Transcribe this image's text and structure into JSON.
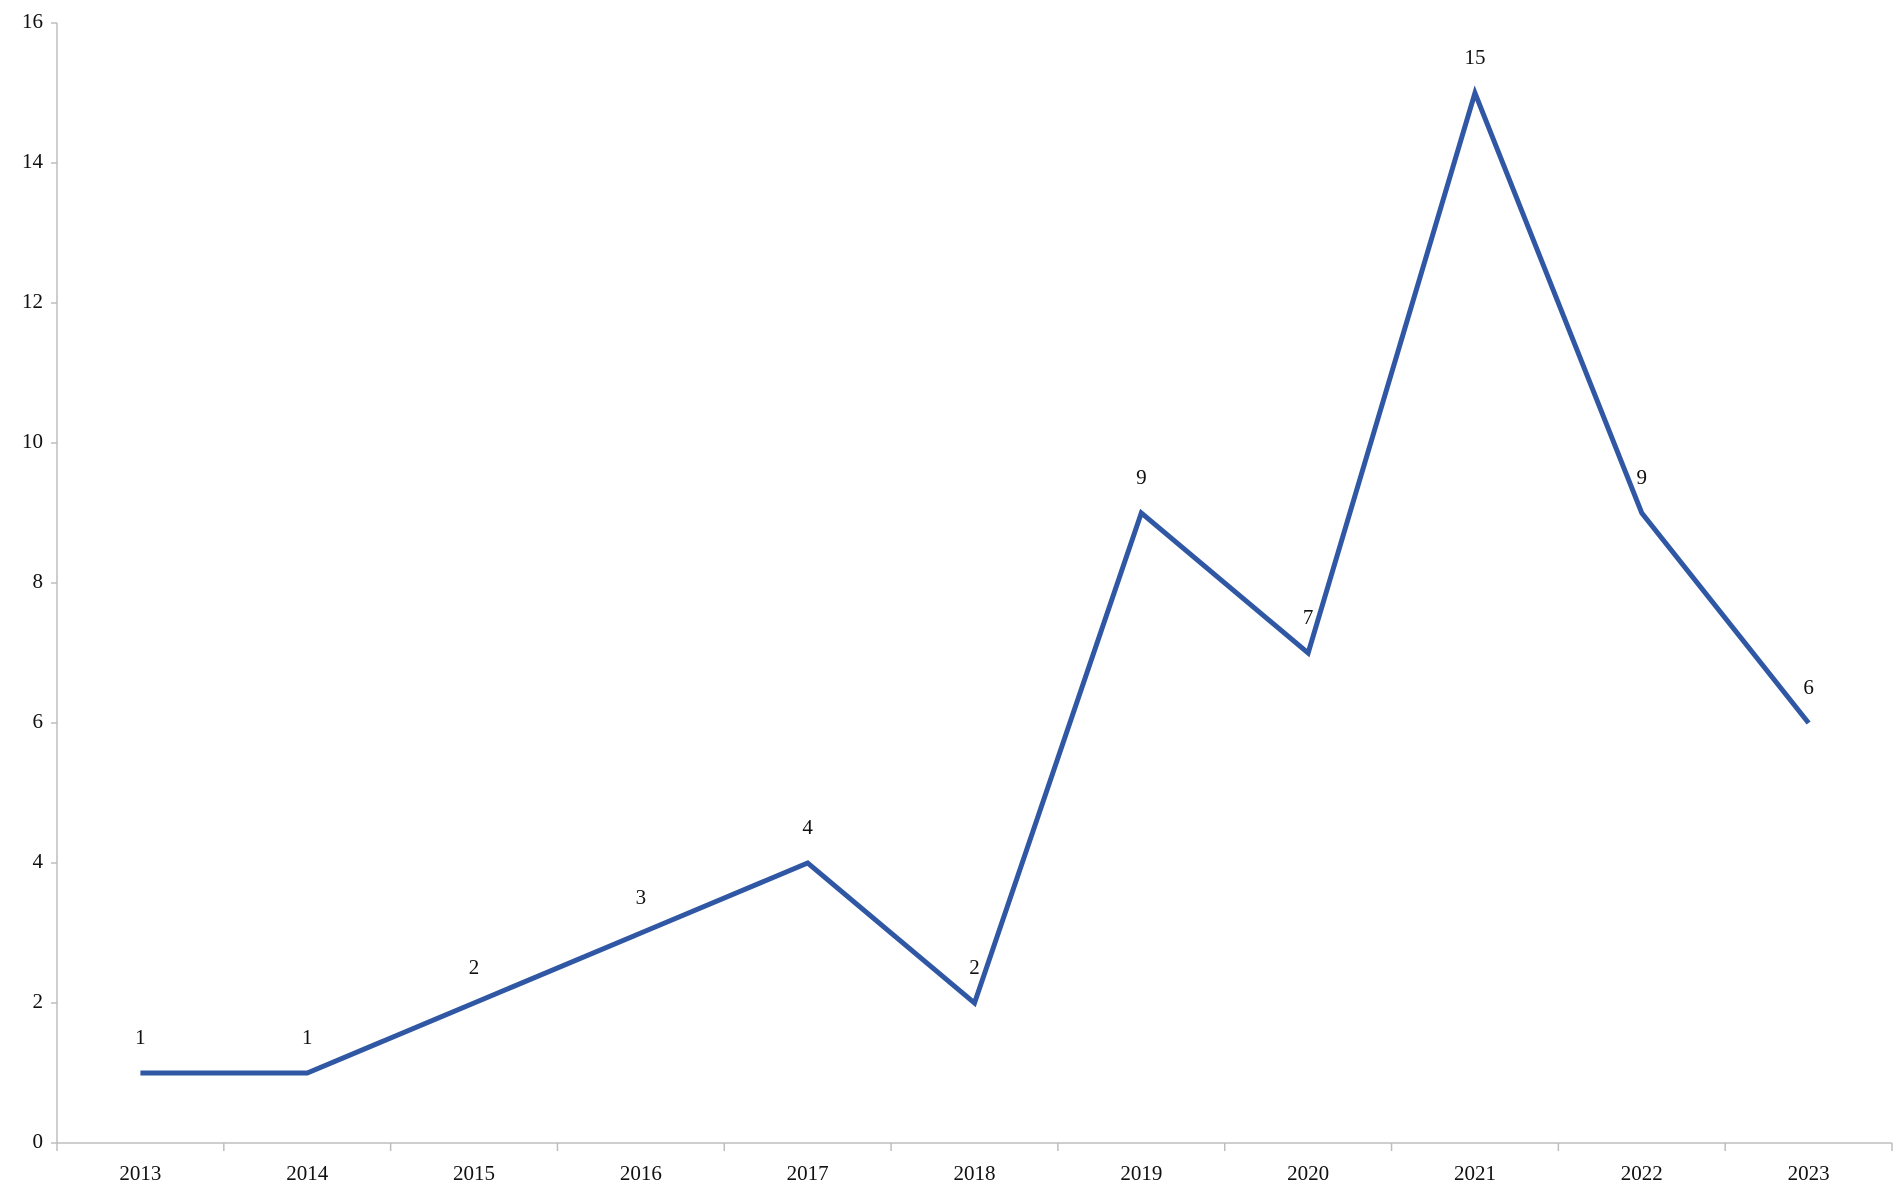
{
  "chart_data": {
    "type": "line",
    "categories": [
      "2013",
      "2014",
      "2015",
      "2016",
      "2017",
      "2018",
      "2019",
      "2020",
      "2021",
      "2022",
      "2023"
    ],
    "values": [
      1,
      1,
      2,
      3,
      4,
      2,
      9,
      7,
      15,
      9,
      6
    ],
    "color": "#2f57a3",
    "ylim": [
      0,
      16
    ],
    "yticks": [
      0,
      2,
      4,
      6,
      8,
      10,
      12,
      14,
      16
    ],
    "grid": false
  }
}
